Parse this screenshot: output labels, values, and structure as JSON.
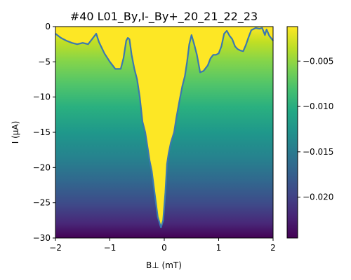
{
  "chart_data": {
    "type": "heatmap",
    "title": "#40 L01_By,I-_By+_20_21_22_23",
    "xlabel": "B⊥ (mT)",
    "ylabel": "I (μA)",
    "xlim": [
      -2,
      2
    ],
    "ylim": [
      -30,
      0
    ],
    "x_ticks": [
      {
        "value": -2,
        "label": "−2"
      },
      {
        "value": -1,
        "label": "−1"
      },
      {
        "value": 0,
        "label": "0"
      },
      {
        "value": 1,
        "label": "1"
      },
      {
        "value": 2,
        "label": "2"
      }
    ],
    "y_ticks": [
      {
        "value": 0,
        "label": "0"
      },
      {
        "value": -5,
        "label": "−5"
      },
      {
        "value": -10,
        "label": "−10"
      },
      {
        "value": -15,
        "label": "−15"
      },
      {
        "value": -20,
        "label": "−20"
      },
      {
        "value": -25,
        "label": "−25"
      },
      {
        "value": -30,
        "label": "−30"
      }
    ],
    "colorbar": {
      "colormap": "viridis",
      "range": [
        -0.0245,
        -0.0012
      ],
      "ticks": [
        {
          "value": -0.005,
          "label": "−0.005"
        },
        {
          "value": -0.01,
          "label": "−0.010"
        },
        {
          "value": -0.015,
          "label": "−0.015"
        },
        {
          "value": -0.02,
          "label": "−0.020"
        }
      ]
    },
    "field": {
      "top_value": -0.0013,
      "bottom_value": -0.0243,
      "saturated_value": -0.0012
    },
    "critical_current_contour": {
      "color": "#3a78b0",
      "points": [
        [
          -2.0,
          -1.0
        ],
        [
          -1.9,
          -1.6
        ],
        [
          -1.8,
          -2.0
        ],
        [
          -1.7,
          -2.3
        ],
        [
          -1.6,
          -2.5
        ],
        [
          -1.5,
          -2.3
        ],
        [
          -1.4,
          -2.5
        ],
        [
          -1.3,
          -1.5
        ],
        [
          -1.25,
          -1.0
        ],
        [
          -1.2,
          -2.2
        ],
        [
          -1.1,
          -3.8
        ],
        [
          -1.0,
          -5.0
        ],
        [
          -0.9,
          -6.0
        ],
        [
          -0.8,
          -6.0
        ],
        [
          -0.75,
          -4.5
        ],
        [
          -0.7,
          -2.0
        ],
        [
          -0.67,
          -1.6
        ],
        [
          -0.64,
          -1.8
        ],
        [
          -0.6,
          -4.0
        ],
        [
          -0.55,
          -6.0
        ],
        [
          -0.5,
          -7.5
        ],
        [
          -0.45,
          -10.0
        ],
        [
          -0.4,
          -13.5
        ],
        [
          -0.35,
          -15.0
        ],
        [
          -0.3,
          -17.5
        ],
        [
          -0.27,
          -19.0
        ],
        [
          -0.23,
          -20.5
        ],
        [
          -0.18,
          -23.5
        ],
        [
          -0.12,
          -27.0
        ],
        [
          -0.06,
          -28.5
        ],
        [
          -0.02,
          -27.5
        ],
        [
          0.02,
          -23.5
        ],
        [
          0.05,
          -19.5
        ],
        [
          0.08,
          -18.0
        ],
        [
          0.12,
          -16.5
        ],
        [
          0.18,
          -15.0
        ],
        [
          0.22,
          -13.0
        ],
        [
          0.28,
          -10.5
        ],
        [
          0.33,
          -8.5
        ],
        [
          0.38,
          -7.0
        ],
        [
          0.42,
          -5.0
        ],
        [
          0.46,
          -2.5
        ],
        [
          0.5,
          -1.2
        ],
        [
          0.55,
          -2.5
        ],
        [
          0.6,
          -4.0
        ],
        [
          0.66,
          -6.5
        ],
        [
          0.72,
          -6.3
        ],
        [
          0.8,
          -5.5
        ],
        [
          0.85,
          -4.5
        ],
        [
          0.9,
          -4.0
        ],
        [
          0.95,
          -4.0
        ],
        [
          1.0,
          -3.8
        ],
        [
          1.05,
          -2.8
        ],
        [
          1.1,
          -1.0
        ],
        [
          1.15,
          -0.6
        ],
        [
          1.2,
          -1.3
        ],
        [
          1.25,
          -1.8
        ],
        [
          1.3,
          -2.8
        ],
        [
          1.35,
          -3.2
        ],
        [
          1.4,
          -3.4
        ],
        [
          1.45,
          -3.5
        ],
        [
          1.5,
          -2.6
        ],
        [
          1.55,
          -1.5
        ],
        [
          1.6,
          -0.5
        ],
        [
          1.68,
          -0.2
        ],
        [
          1.75,
          -0.3
        ],
        [
          1.8,
          -0.2
        ],
        [
          1.85,
          -1.2
        ],
        [
          1.88,
          -0.4
        ],
        [
          1.93,
          -1.3
        ],
        [
          2.0,
          -2.0
        ]
      ]
    }
  }
}
